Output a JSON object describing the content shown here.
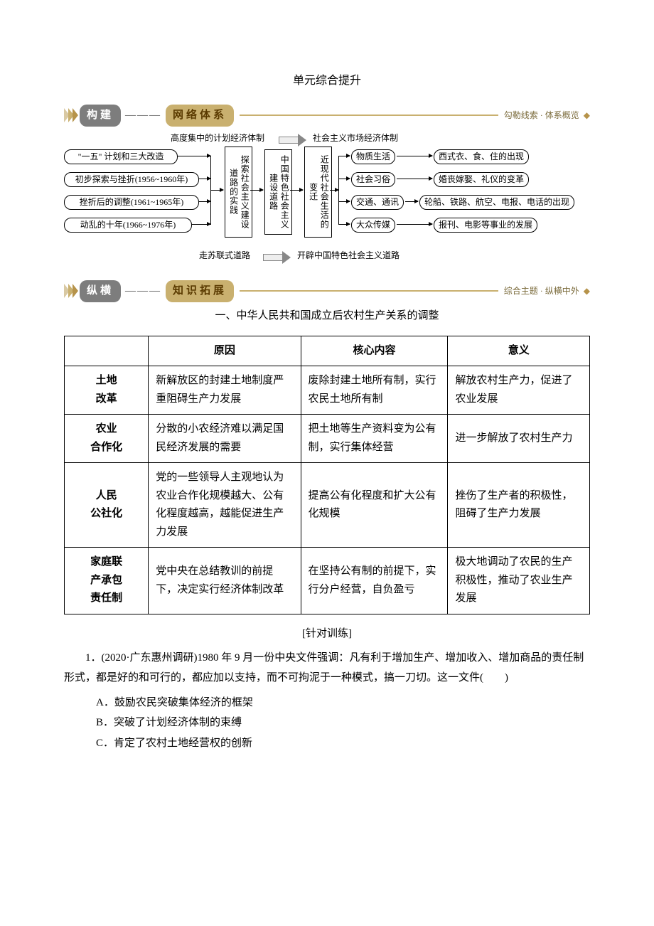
{
  "title": "单元综合提升",
  "section1": {
    "pill1": "构建",
    "dash": "———",
    "pill2": "网络体系",
    "caption": "勾勒线索 · 体系概览",
    "diamond": "◆"
  },
  "flow": {
    "top_left": "高度集中的计划经济体制",
    "top_right": "社会主义市场经济体制",
    "left_boxes": [
      "\"一五\" 计划和三大改造",
      "初步探索与挫折(1956~1960年)",
      "挫折后的调整(1961~1965年)",
      "动乱的十年(1966~1976年)"
    ],
    "mid_box1": "探索社会主义建设道路的实践",
    "mid_box2": "中国特色社会主义建设道路",
    "mid_box3": "近现代社会生活的变迁",
    "right_pairs": [
      {
        "a": "物质生活",
        "b": "西式衣、食、住的出现"
      },
      {
        "a": "社会习俗",
        "b": "婚丧嫁娶、礼仪的变革"
      },
      {
        "a": "交通、通讯",
        "b": "轮船、铁路、航空、电报、电话的出现"
      },
      {
        "a": "大众传媒",
        "b": "报刊、电影等事业的发展"
      }
    ],
    "bottom_left": "走苏联式道路",
    "bottom_right": "开辟中国特色社会主义道路"
  },
  "section2": {
    "pill1": "纵横",
    "dash": "———",
    "pill2": "知识拓展",
    "caption": "综合主题 · 纵横中外",
    "diamond": "◆"
  },
  "subheading": "一、中华人民共和国成立后农村生产关系的调整",
  "table": {
    "headers": [
      "",
      "原因",
      "核心内容",
      "意义"
    ],
    "col_widths": [
      "16%",
      "29%",
      "28%",
      "27%"
    ],
    "rows": [
      {
        "name_lines": [
          "土地",
          "改革"
        ],
        "reason": "新解放区的封建土地制度严重阻碍生产力发展",
        "core": "废除封建土地所有制，实行农民土地所有制",
        "meaning": "解放农村生产力，促进了农业发展"
      },
      {
        "name_lines": [
          "农业",
          "合作化"
        ],
        "reason": "分散的小农经济难以满足国民经济发展的需要",
        "core": "把土地等生产资料变为公有制，实行集体经营",
        "meaning": "进一步解放了农村生产力"
      },
      {
        "name_lines": [
          "人民",
          "公社化"
        ],
        "reason": "党的一些领导人主观地认为农业合作化规模越大、公有化程度越高，越能促进生产力发展",
        "core": "提高公有化程度和扩大公有化规模",
        "meaning": "挫伤了生产者的积极性，阻碍了生产力发展"
      },
      {
        "name_lines": [
          "家庭联",
          "产承包",
          "责任制"
        ],
        "reason": "党中央在总结教训的前提下，决定实行经济体制改革",
        "core": "在坚持公有制的前提下，实行分户经营，自负盈亏",
        "meaning": "极大地调动了农民的生产积极性，推动了农业生产发展"
      }
    ]
  },
  "training_label": "[针对训练]",
  "question": {
    "stem": "1．(2020·广东惠州调研)1980 年 9 月一份中央文件强调：凡有利于增加生产、增加收入、增加商品的责任制形式，都是好的和可行的，都应加以支持，而不可拘泥于一种模式，搞一刀切。这一文件(　　)",
    "options": [
      "A．鼓励农民突破集体经济的框架",
      "B．突破了计划经济体制的束缚",
      "C．肯定了农村土地经营权的创新"
    ]
  }
}
